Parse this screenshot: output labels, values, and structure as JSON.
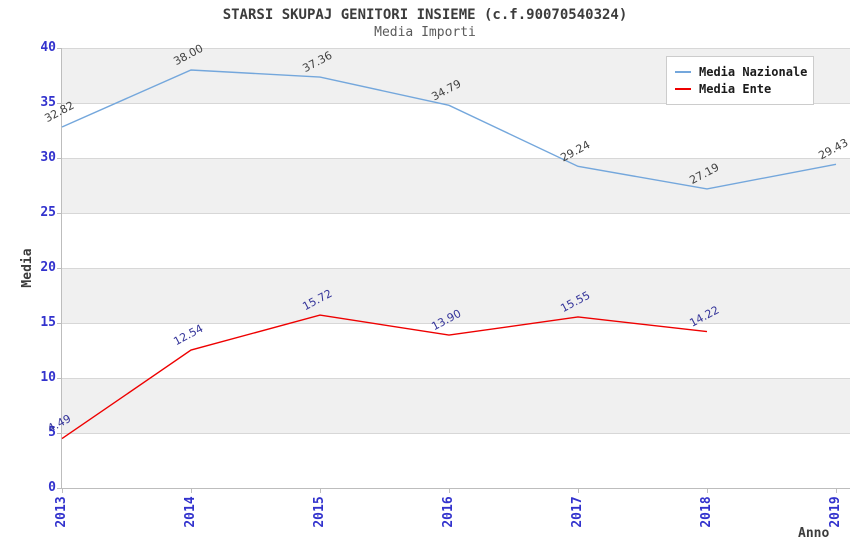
{
  "chart_data": {
    "type": "line",
    "title": "STARSI SKUPAJ GENITORI INSIEME (c.f.90070540324)",
    "subtitle": "Media Importi",
    "xlabel": "Anno",
    "ylabel": "Media",
    "categories": [
      "2013",
      "2014",
      "2015",
      "2016",
      "2017",
      "2018",
      "2019"
    ],
    "series": [
      {
        "name": "Media Nazionale",
        "color": "#74a7dc",
        "label_color": "#404040",
        "values": [
          32.82,
          38.0,
          37.36,
          34.79,
          29.24,
          27.19,
          29.43
        ]
      },
      {
        "name": "Media Ente",
        "color": "#ee0000",
        "label_color": "#333399",
        "values": [
          4.49,
          12.54,
          15.72,
          13.9,
          15.55,
          14.22,
          null
        ]
      }
    ],
    "ylim": [
      0,
      40
    ],
    "ytick_step": 5,
    "yticks": [
      0,
      5,
      10,
      15,
      20,
      25,
      30,
      35,
      40
    ],
    "grid": "horizontal-bands",
    "band_color": "#f0f0f0",
    "gridline_color": "#d7d7d7",
    "tick_text_color": "#3232cd",
    "legend_position": "top-right",
    "value_label_format": "2-decimals"
  }
}
